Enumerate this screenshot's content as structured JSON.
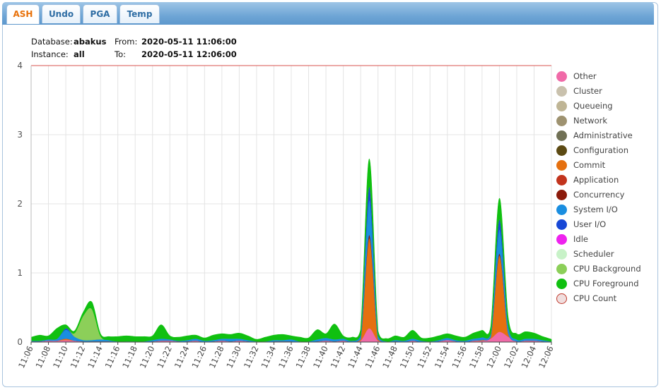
{
  "tabs": [
    {
      "label": "ASH",
      "active": true
    },
    {
      "label": "Undo",
      "active": false
    },
    {
      "label": "PGA",
      "active": false
    },
    {
      "label": "Temp",
      "active": false
    }
  ],
  "info": {
    "database_label": "Database:",
    "database_value": "abakus",
    "instance_label": "Instance:",
    "instance_value": "all",
    "from_label": "From:",
    "from_value": "2020-05-11 11:06:00",
    "to_label": "To:",
    "to_value": "2020-05-11 12:06:00"
  },
  "chart_data": {
    "type": "area",
    "stacked": true,
    "x": [
      "11:06",
      "11:07",
      "11:08",
      "11:09",
      "11:10",
      "11:11",
      "11:12",
      "11:13",
      "11:14",
      "11:15",
      "11:16",
      "11:17",
      "11:18",
      "11:19",
      "11:20",
      "11:21",
      "11:22",
      "11:23",
      "11:24",
      "11:25",
      "11:26",
      "11:27",
      "11:28",
      "11:29",
      "11:30",
      "11:31",
      "11:32",
      "11:33",
      "11:34",
      "11:35",
      "11:36",
      "11:37",
      "11:38",
      "11:39",
      "11:40",
      "11:41",
      "11:42",
      "11:43",
      "11:44",
      "11:45",
      "11:46",
      "11:47",
      "11:48",
      "11:49",
      "11:50",
      "11:51",
      "11:52",
      "11:53",
      "11:54",
      "11:55",
      "11:56",
      "11:57",
      "11:58",
      "11:59",
      "12:00",
      "12:01",
      "12:02",
      "12:03",
      "12:04",
      "12:05",
      "12:06"
    ],
    "x_tick_labels": [
      "11:06",
      "11:08",
      "11:10",
      "11:12",
      "11:14",
      "11:16",
      "11:18",
      "11:20",
      "11:22",
      "11:24",
      "11:26",
      "11:28",
      "11:30",
      "11:32",
      "11:34",
      "11:36",
      "11:38",
      "11:40",
      "11:42",
      "11:44",
      "11:46",
      "11:48",
      "11:50",
      "11:52",
      "11:54",
      "11:56",
      "11:58",
      "12:00",
      "12:02",
      "12:04",
      "12:06"
    ],
    "ylim": [
      0,
      4
    ],
    "y_ticks": [
      0,
      1,
      2,
      3,
      4
    ],
    "grid": true,
    "legend_position": "right",
    "cpu_count": 4,
    "series": [
      {
        "name": "Other",
        "color": "#f06aa8",
        "values": [
          0.01,
          0.01,
          0.02,
          0.02,
          0.03,
          0.02,
          0.01,
          0.01,
          0.01,
          0.01,
          0,
          0,
          0,
          0,
          0.01,
          0.02,
          0.02,
          0.01,
          0.01,
          0.02,
          0,
          0.01,
          0.02,
          0.01,
          0.02,
          0.01,
          0,
          0,
          0.01,
          0.01,
          0.01,
          0,
          0,
          0.01,
          0.02,
          0.01,
          0.02,
          0,
          0.02,
          0.2,
          0.02,
          0,
          0.01,
          0,
          0.02,
          0,
          0,
          0.01,
          0.03,
          0.01,
          0,
          0.02,
          0.02,
          0.05,
          0.15,
          0.08,
          0.01,
          0.02,
          0.02,
          0.01,
          0
        ]
      },
      {
        "name": "Cluster",
        "color": "#c9c1ad",
        "values": [
          0,
          0,
          0,
          0,
          0,
          0,
          0,
          0,
          0,
          0,
          0,
          0,
          0,
          0,
          0,
          0,
          0,
          0,
          0,
          0,
          0,
          0,
          0,
          0,
          0,
          0,
          0,
          0,
          0,
          0,
          0,
          0,
          0,
          0,
          0,
          0,
          0,
          0,
          0,
          0,
          0,
          0,
          0,
          0,
          0,
          0,
          0,
          0,
          0,
          0,
          0,
          0,
          0,
          0,
          0,
          0,
          0,
          0,
          0,
          0,
          0
        ]
      },
      {
        "name": "Queueing",
        "color": "#bfb595",
        "values": [
          0,
          0,
          0,
          0,
          0,
          0,
          0,
          0,
          0,
          0,
          0,
          0,
          0,
          0,
          0,
          0,
          0,
          0,
          0,
          0,
          0,
          0,
          0,
          0,
          0,
          0,
          0,
          0,
          0,
          0,
          0,
          0,
          0,
          0,
          0,
          0,
          0,
          0,
          0,
          0,
          0,
          0,
          0,
          0,
          0,
          0,
          0,
          0,
          0,
          0,
          0,
          0,
          0,
          0,
          0,
          0,
          0,
          0,
          0,
          0,
          0
        ]
      },
      {
        "name": "Network",
        "color": "#9e9270",
        "values": [
          0,
          0,
          0,
          0,
          0,
          0,
          0,
          0,
          0,
          0,
          0,
          0,
          0,
          0,
          0,
          0,
          0,
          0,
          0,
          0,
          0,
          0,
          0,
          0,
          0,
          0,
          0,
          0,
          0,
          0,
          0,
          0,
          0,
          0,
          0,
          0,
          0,
          0,
          0,
          0,
          0,
          0,
          0,
          0,
          0,
          0,
          0,
          0,
          0,
          0,
          0,
          0,
          0,
          0,
          0,
          0,
          0,
          0,
          0,
          0,
          0
        ]
      },
      {
        "name": "Administrative",
        "color": "#707055",
        "values": [
          0,
          0,
          0,
          0,
          0,
          0,
          0,
          0,
          0,
          0,
          0,
          0,
          0,
          0,
          0,
          0,
          0,
          0,
          0,
          0,
          0,
          0,
          0,
          0,
          0,
          0,
          0,
          0,
          0,
          0,
          0,
          0,
          0,
          0,
          0,
          0,
          0,
          0,
          0,
          0,
          0,
          0,
          0,
          0,
          0,
          0,
          0,
          0,
          0,
          0,
          0,
          0,
          0,
          0,
          0,
          0,
          0,
          0,
          0,
          0,
          0
        ]
      },
      {
        "name": "Configuration",
        "color": "#5c4a13",
        "values": [
          0,
          0,
          0,
          0,
          0,
          0,
          0,
          0,
          0,
          0,
          0,
          0,
          0,
          0,
          0,
          0,
          0,
          0,
          0,
          0,
          0,
          0,
          0,
          0,
          0,
          0,
          0,
          0,
          0,
          0,
          0,
          0,
          0,
          0,
          0,
          0,
          0,
          0,
          0,
          0,
          0,
          0,
          0,
          0,
          0,
          0,
          0,
          0,
          0,
          0,
          0,
          0,
          0,
          0,
          0,
          0,
          0,
          0,
          0,
          0,
          0
        ]
      },
      {
        "name": "Commit",
        "color": "#e5700f",
        "values": [
          0,
          0,
          0,
          0,
          0.02,
          0,
          0,
          0,
          0,
          0,
          0,
          0,
          0,
          0,
          0,
          0,
          0,
          0,
          0,
          0,
          0,
          0,
          0,
          0,
          0,
          0,
          0,
          0,
          0,
          0,
          0,
          0,
          0,
          0,
          0,
          0,
          0,
          0,
          0.02,
          1.3,
          0.02,
          0,
          0,
          0,
          0,
          0,
          0,
          0,
          0,
          0,
          0,
          0,
          0.01,
          0.02,
          1.1,
          0.05,
          0,
          0,
          0,
          0,
          0
        ]
      },
      {
        "name": "Application",
        "color": "#c2341d",
        "values": [
          0,
          0,
          0,
          0,
          0,
          0,
          0,
          0,
          0,
          0,
          0,
          0,
          0,
          0,
          0,
          0,
          0,
          0,
          0,
          0,
          0,
          0,
          0,
          0,
          0,
          0,
          0,
          0,
          0,
          0,
          0,
          0,
          0,
          0,
          0,
          0,
          0,
          0,
          0,
          0,
          0,
          0,
          0,
          0,
          0,
          0,
          0,
          0,
          0,
          0,
          0,
          0,
          0,
          0,
          0,
          0,
          0,
          0,
          0,
          0,
          0
        ]
      },
      {
        "name": "Concurrency",
        "color": "#8b1a0a",
        "values": [
          0,
          0,
          0,
          0,
          0,
          0,
          0,
          0,
          0,
          0,
          0,
          0,
          0,
          0,
          0,
          0,
          0,
          0,
          0,
          0,
          0,
          0,
          0,
          0,
          0,
          0,
          0,
          0,
          0,
          0,
          0,
          0,
          0,
          0,
          0,
          0,
          0,
          0,
          0,
          0.05,
          0,
          0,
          0,
          0,
          0,
          0,
          0,
          0,
          0,
          0,
          0,
          0,
          0,
          0,
          0.03,
          0,
          0,
          0,
          0,
          0,
          0
        ]
      },
      {
        "name": "System I/O",
        "color": "#1a8ee0",
        "values": [
          0.01,
          0.01,
          0.02,
          0.03,
          0.13,
          0.06,
          0.02,
          0.02,
          0.03,
          0.02,
          0.01,
          0.01,
          0.01,
          0.01,
          0.02,
          0.03,
          0.02,
          0.01,
          0.02,
          0.03,
          0.02,
          0.02,
          0.03,
          0.04,
          0.03,
          0.02,
          0.01,
          0.01,
          0.02,
          0.02,
          0.03,
          0.01,
          0.01,
          0.03,
          0.04,
          0.03,
          0.03,
          0.02,
          0.05,
          0.5,
          0.05,
          0.01,
          0.02,
          0.02,
          0.03,
          0.02,
          0.01,
          0.02,
          0.03,
          0.02,
          0.02,
          0.03,
          0.04,
          0.05,
          0.35,
          0.1,
          0.03,
          0.03,
          0.03,
          0.02,
          0.01
        ]
      },
      {
        "name": "User I/O",
        "color": "#1848d6",
        "values": [
          0,
          0,
          0,
          0,
          0.02,
          0,
          0,
          0,
          0,
          0,
          0,
          0,
          0,
          0,
          0,
          0,
          0,
          0,
          0,
          0,
          0,
          0,
          0,
          0,
          0,
          0,
          0,
          0,
          0,
          0,
          0,
          0,
          0,
          0,
          0,
          0,
          0,
          0,
          0.01,
          0.2,
          0.01,
          0,
          0,
          0,
          0,
          0,
          0,
          0,
          0,
          0,
          0,
          0,
          0,
          0,
          0.15,
          0.02,
          0,
          0,
          0,
          0,
          0
        ]
      },
      {
        "name": "Idle",
        "color": "#ee22ee",
        "values": [
          0,
          0,
          0,
          0,
          0,
          0,
          0,
          0,
          0,
          0,
          0,
          0,
          0,
          0,
          0,
          0,
          0,
          0,
          0,
          0,
          0,
          0,
          0,
          0,
          0,
          0,
          0,
          0,
          0,
          0,
          0,
          0,
          0,
          0,
          0,
          0,
          0,
          0,
          0,
          0,
          0,
          0,
          0,
          0,
          0,
          0,
          0,
          0,
          0,
          0,
          0,
          0,
          0,
          0,
          0,
          0,
          0,
          0,
          0,
          0,
          0
        ]
      },
      {
        "name": "Scheduler",
        "color": "#c8f2c8",
        "values": [
          0,
          0,
          0,
          0,
          0,
          0,
          0,
          0,
          0,
          0,
          0,
          0,
          0,
          0,
          0,
          0,
          0,
          0,
          0,
          0,
          0,
          0,
          0,
          0,
          0,
          0,
          0,
          0,
          0,
          0,
          0,
          0,
          0,
          0,
          0,
          0,
          0,
          0,
          0,
          0,
          0,
          0,
          0,
          0,
          0,
          0,
          0,
          0,
          0,
          0,
          0,
          0,
          0,
          0,
          0,
          0,
          0,
          0,
          0,
          0,
          0
        ]
      },
      {
        "name": "CPU Background",
        "color": "#8ccf59",
        "values": [
          0,
          0,
          0,
          0,
          0,
          0.05,
          0.35,
          0.45,
          0.05,
          0,
          0,
          0,
          0,
          0,
          0,
          0,
          0,
          0,
          0,
          0,
          0,
          0,
          0,
          0,
          0,
          0,
          0,
          0,
          0,
          0,
          0,
          0,
          0,
          0,
          0,
          0,
          0,
          0,
          0,
          0,
          0,
          0,
          0,
          0,
          0,
          0,
          0,
          0,
          0,
          0,
          0,
          0,
          0,
          0,
          0,
          0,
          0,
          0,
          0,
          0,
          0
        ]
      },
      {
        "name": "CPU Foreground",
        "color": "#10c010",
        "values": [
          0.05,
          0.08,
          0.05,
          0.15,
          0.05,
          0.03,
          0.05,
          0.1,
          0.03,
          0.05,
          0.07,
          0.08,
          0.07,
          0.07,
          0.06,
          0.2,
          0.05,
          0.05,
          0.06,
          0.05,
          0.04,
          0.07,
          0.07,
          0.06,
          0.08,
          0.06,
          0.03,
          0.06,
          0.07,
          0.08,
          0.05,
          0.06,
          0.05,
          0.14,
          0.06,
          0.22,
          0.04,
          0.05,
          0.08,
          0.4,
          0.06,
          0.04,
          0.06,
          0.05,
          0.12,
          0.04,
          0.05,
          0.06,
          0.06,
          0.06,
          0.05,
          0.08,
          0.1,
          0.1,
          0.3,
          0.12,
          0.08,
          0.1,
          0.08,
          0.05,
          0.03
        ]
      }
    ],
    "legend_extra": {
      "name": "CPU Count",
      "color": "#f0dede",
      "stroke": "#c0392b"
    }
  }
}
